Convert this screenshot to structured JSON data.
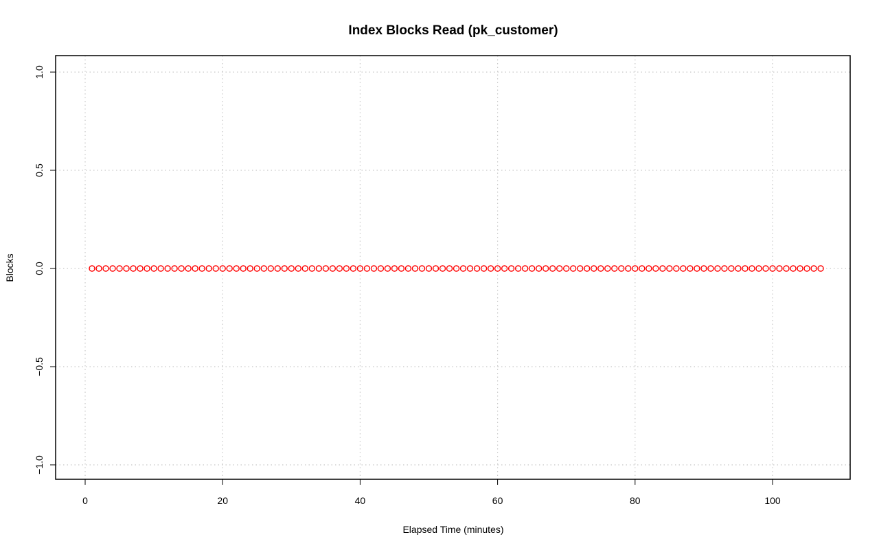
{
  "chart_data": {
    "type": "scatter",
    "title": "Index Blocks Read (pk_customer)",
    "xlabel": "Elapsed Time (minutes)",
    "ylabel": "Blocks",
    "xlim": [
      1,
      107
    ],
    "ylim": [
      -1.0,
      1.0
    ],
    "x_ticks": [
      0,
      20,
      40,
      60,
      80,
      100
    ],
    "x_tick_labels": [
      "0",
      "20",
      "40",
      "60",
      "80",
      "100"
    ],
    "y_ticks": [
      -1.0,
      -0.5,
      0.0,
      0.5,
      1.0
    ],
    "y_tick_labels": [
      "−1.0",
      "−0.5",
      "0.0",
      "0.5",
      "1.0"
    ],
    "grid": true,
    "marker": "open-circle",
    "point_color": "#ff0000",
    "grid_color": "#c8c8c8",
    "series": [
      {
        "x": [
          1,
          2,
          3,
          4,
          5,
          6,
          7,
          8,
          9,
          10,
          11,
          12,
          13,
          14,
          15,
          16,
          17,
          18,
          19,
          20,
          21,
          22,
          23,
          24,
          25,
          26,
          27,
          28,
          29,
          30,
          31,
          32,
          33,
          34,
          35,
          36,
          37,
          38,
          39,
          40,
          41,
          42,
          43,
          44,
          45,
          46,
          47,
          48,
          49,
          50,
          51,
          52,
          53,
          54,
          55,
          56,
          57,
          58,
          59,
          60,
          61,
          62,
          63,
          64,
          65,
          66,
          67,
          68,
          69,
          70,
          71,
          72,
          73,
          74,
          75,
          76,
          77,
          78,
          79,
          80,
          81,
          82,
          83,
          84,
          85,
          86,
          87,
          88,
          89,
          90,
          91,
          92,
          93,
          94,
          95,
          96,
          97,
          98,
          99,
          100,
          101,
          102,
          103,
          104,
          105,
          106,
          107
        ],
        "y": [
          0,
          0,
          0,
          0,
          0,
          0,
          0,
          0,
          0,
          0,
          0,
          0,
          0,
          0,
          0,
          0,
          0,
          0,
          0,
          0,
          0,
          0,
          0,
          0,
          0,
          0,
          0,
          0,
          0,
          0,
          0,
          0,
          0,
          0,
          0,
          0,
          0,
          0,
          0,
          0,
          0,
          0,
          0,
          0,
          0,
          0,
          0,
          0,
          0,
          0,
          0,
          0,
          0,
          0,
          0,
          0,
          0,
          0,
          0,
          0,
          0,
          0,
          0,
          0,
          0,
          0,
          0,
          0,
          0,
          0,
          0,
          0,
          0,
          0,
          0,
          0,
          0,
          0,
          0,
          0,
          0,
          0,
          0,
          0,
          0,
          0,
          0,
          0,
          0,
          0,
          0,
          0,
          0,
          0,
          0,
          0,
          0,
          0,
          0,
          0,
          0,
          0,
          0,
          0,
          0,
          0,
          0
        ]
      }
    ]
  }
}
